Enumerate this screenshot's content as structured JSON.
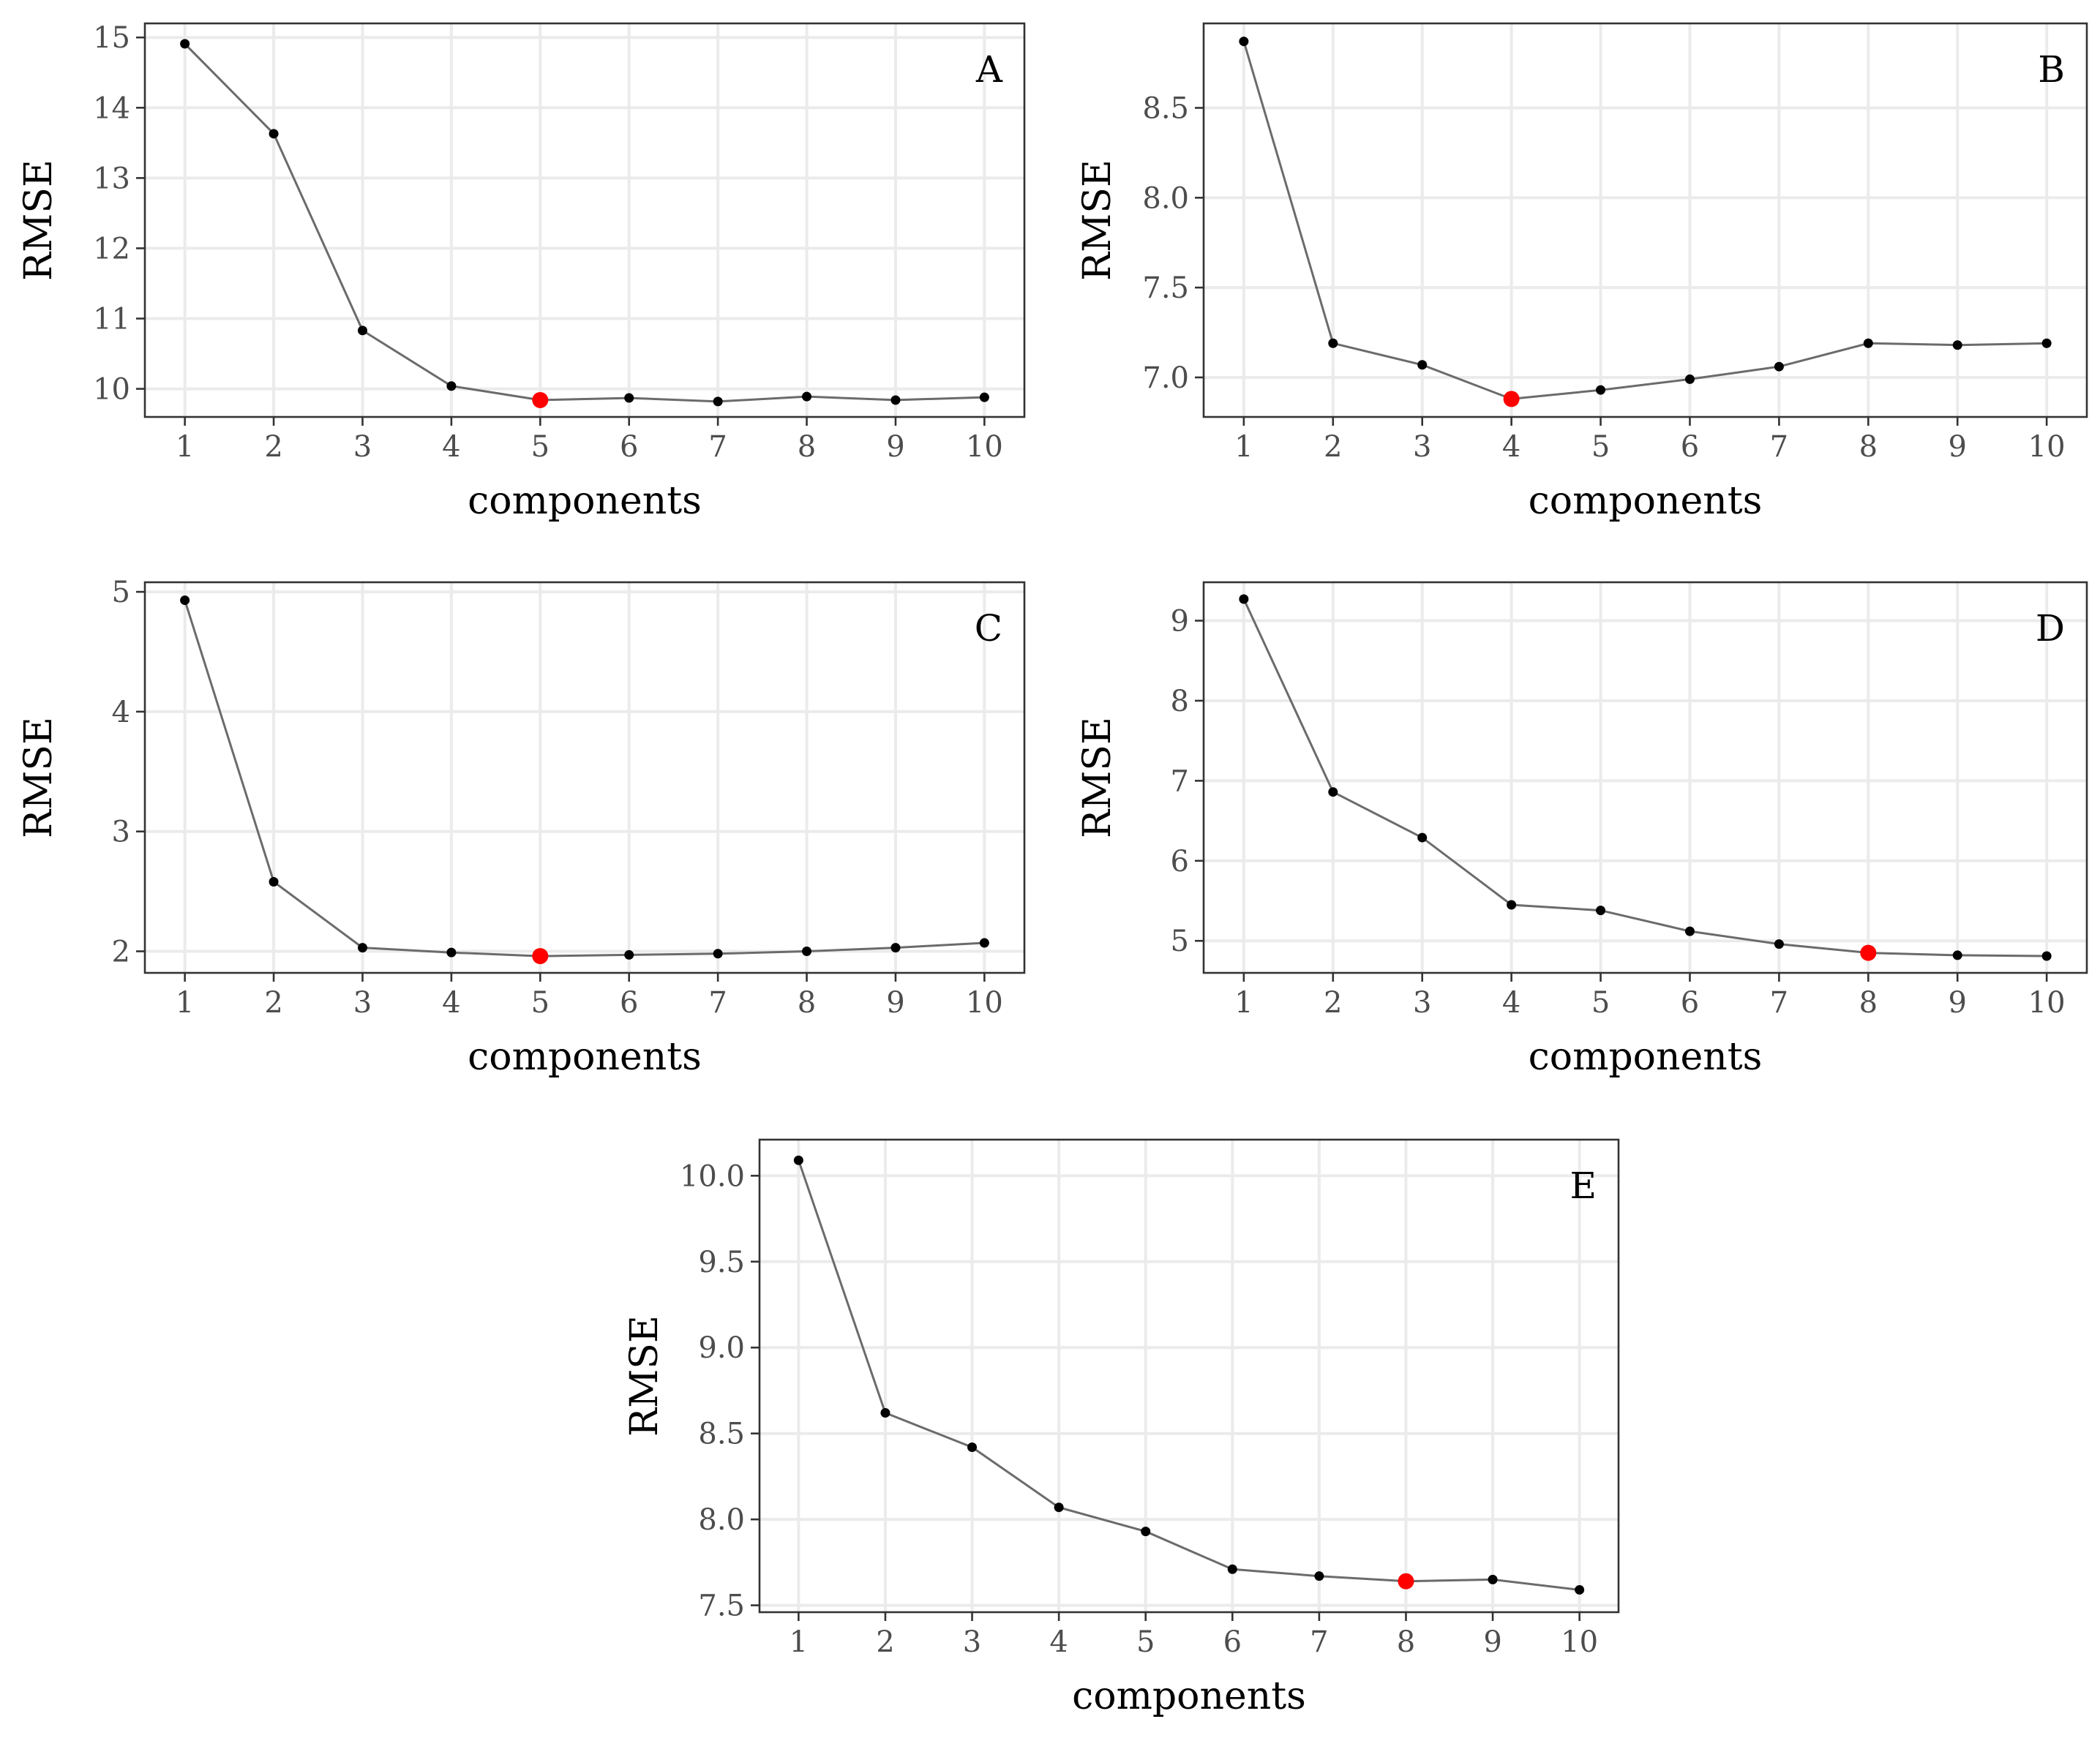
{
  "figure": {
    "highlight_color": "#ff0000",
    "point_color": "#000000",
    "line_color": "#6b6b6b"
  },
  "chart_data": [
    {
      "type": "line",
      "panel": "A",
      "xlabel": "components",
      "ylabel": "RMSE",
      "x": [
        1,
        2,
        3,
        4,
        5,
        6,
        7,
        8,
        9,
        10
      ],
      "y": [
        14.91,
        13.63,
        10.83,
        10.04,
        9.84,
        9.87,
        9.82,
        9.89,
        9.84,
        9.88
      ],
      "highlight_x": 5,
      "ylim": [
        9.6,
        15.2
      ],
      "yticks": [
        10,
        11,
        12,
        13,
        14,
        15
      ],
      "ytick_labels": [
        "10",
        "11",
        "12",
        "13",
        "14",
        "15"
      ],
      "xticks": [
        1,
        2,
        3,
        4,
        5,
        6,
        7,
        8,
        9,
        10
      ],
      "xtick_labels": [
        "1",
        "2",
        "3",
        "4",
        "5",
        "6",
        "7",
        "8",
        "9",
        "10"
      ],
      "grid": true
    },
    {
      "type": "line",
      "panel": "B",
      "xlabel": "components",
      "ylabel": "RMSE",
      "x": [
        1,
        2,
        3,
        4,
        5,
        6,
        7,
        8,
        9,
        10
      ],
      "y": [
        8.87,
        7.19,
        7.07,
        6.88,
        6.93,
        6.99,
        7.06,
        7.19,
        7.18,
        7.19
      ],
      "highlight_x": 4,
      "ylim": [
        6.78,
        8.97
      ],
      "yticks": [
        7.0,
        7.5,
        8.0,
        8.5
      ],
      "ytick_labels": [
        "7.0",
        "7.5",
        "8.0",
        "8.5"
      ],
      "xticks": [
        1,
        2,
        3,
        4,
        5,
        6,
        7,
        8,
        9,
        10
      ],
      "xtick_labels": [
        "1",
        "2",
        "3",
        "4",
        "5",
        "6",
        "7",
        "8",
        "9",
        "10"
      ],
      "grid": true
    },
    {
      "type": "line",
      "panel": "C",
      "xlabel": "components",
      "ylabel": "RMSE",
      "x": [
        1,
        2,
        3,
        4,
        5,
        6,
        7,
        8,
        9,
        10
      ],
      "y": [
        4.93,
        2.58,
        2.03,
        1.99,
        1.96,
        1.97,
        1.98,
        2.0,
        2.03,
        2.07
      ],
      "highlight_x": 5,
      "ylim": [
        1.82,
        5.08
      ],
      "yticks": [
        2,
        3,
        4,
        5
      ],
      "ytick_labels": [
        "2",
        "3",
        "4",
        "5"
      ],
      "xticks": [
        1,
        2,
        3,
        4,
        5,
        6,
        7,
        8,
        9,
        10
      ],
      "xtick_labels": [
        "1",
        "2",
        "3",
        "4",
        "5",
        "6",
        "7",
        "8",
        "9",
        "10"
      ],
      "grid": true
    },
    {
      "type": "line",
      "panel": "D",
      "xlabel": "components",
      "ylabel": "RMSE",
      "x": [
        1,
        2,
        3,
        4,
        5,
        6,
        7,
        8,
        9,
        10
      ],
      "y": [
        9.27,
        6.86,
        6.29,
        5.45,
        5.38,
        5.12,
        4.96,
        4.85,
        4.82,
        4.81
      ],
      "highlight_x": 8,
      "ylim": [
        4.6,
        9.48
      ],
      "yticks": [
        5,
        6,
        7,
        8,
        9
      ],
      "ytick_labels": [
        "5",
        "6",
        "7",
        "8",
        "9"
      ],
      "xticks": [
        1,
        2,
        3,
        4,
        5,
        6,
        7,
        8,
        9,
        10
      ],
      "xtick_labels": [
        "1",
        "2",
        "3",
        "4",
        "5",
        "6",
        "7",
        "8",
        "9",
        "10"
      ],
      "grid": true
    },
    {
      "type": "line",
      "panel": "E",
      "xlabel": "components",
      "ylabel": "RMSE",
      "x": [
        1,
        2,
        3,
        4,
        5,
        6,
        7,
        8,
        9,
        10
      ],
      "y": [
        10.09,
        8.62,
        8.42,
        8.07,
        7.93,
        7.71,
        7.67,
        7.64,
        7.65,
        7.59
      ],
      "highlight_x": 8,
      "ylim": [
        7.46,
        10.21
      ],
      "yticks": [
        7.5,
        8.0,
        8.5,
        9.0,
        9.5,
        10.0
      ],
      "ytick_labels": [
        "7.5",
        "8.0",
        "8.5",
        "9.0",
        "9.5",
        "10.0"
      ],
      "xticks": [
        1,
        2,
        3,
        4,
        5,
        6,
        7,
        8,
        9,
        10
      ],
      "xtick_labels": [
        "1",
        "2",
        "3",
        "4",
        "5",
        "6",
        "7",
        "8",
        "9",
        "10"
      ],
      "grid": true
    }
  ]
}
